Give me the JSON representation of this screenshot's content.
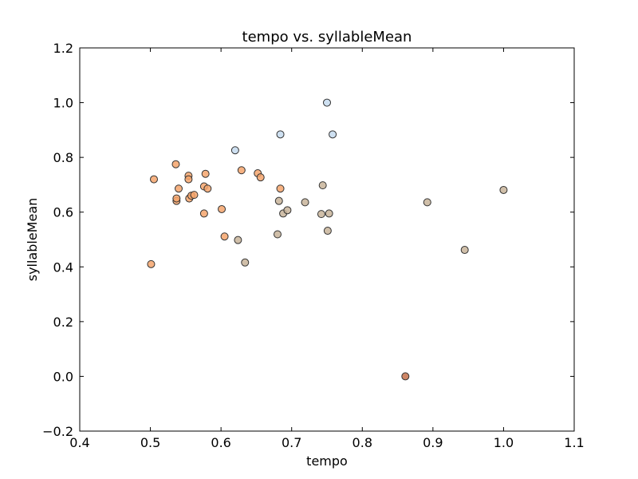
{
  "chart_data": {
    "type": "scatter",
    "title": "tempo vs. syllableMean",
    "xlabel": "tempo",
    "ylabel": "syllableMean",
    "xlim": [
      0.4,
      1.1
    ],
    "ylim": [
      -0.2,
      1.2
    ],
    "xticks": [
      0.4,
      0.5,
      0.6,
      0.7,
      0.8,
      0.9,
      1.0,
      1.1
    ],
    "xtick_labels": [
      "0.4",
      "0.5",
      "0.6",
      "0.7",
      "0.8",
      "0.9",
      "1.0",
      "1.1"
    ],
    "yticks": [
      -0.2,
      0.0,
      0.2,
      0.4,
      0.6,
      0.8,
      1.0,
      1.2
    ],
    "ytick_labels": [
      "−0.2",
      "0.0",
      "0.2",
      "0.4",
      "0.6",
      "0.8",
      "1.0",
      "1.2"
    ],
    "grid": false,
    "colors": {
      "blue": "#c6dbef",
      "orange": "#f4a46c",
      "tan": "#c8b49a",
      "brown": "#c4704a"
    },
    "points": [
      {
        "x": 0.62,
        "y": 0.826,
        "color": "blue"
      },
      {
        "x": 0.684,
        "y": 0.884,
        "color": "blue"
      },
      {
        "x": 0.75,
        "y": 1.0,
        "color": "blue"
      },
      {
        "x": 0.758,
        "y": 0.884,
        "color": "blue"
      },
      {
        "x": 0.501,
        "y": 0.41,
        "color": "orange"
      },
      {
        "x": 0.505,
        "y": 0.72,
        "color": "orange"
      },
      {
        "x": 0.536,
        "y": 0.775,
        "color": "orange"
      },
      {
        "x": 0.537,
        "y": 0.641,
        "color": "orange"
      },
      {
        "x": 0.537,
        "y": 0.65,
        "color": "orange"
      },
      {
        "x": 0.54,
        "y": 0.686,
        "color": "orange"
      },
      {
        "x": 0.554,
        "y": 0.733,
        "color": "orange"
      },
      {
        "x": 0.554,
        "y": 0.72,
        "color": "orange"
      },
      {
        "x": 0.555,
        "y": 0.65,
        "color": "orange"
      },
      {
        "x": 0.558,
        "y": 0.66,
        "color": "orange"
      },
      {
        "x": 0.562,
        "y": 0.663,
        "color": "orange"
      },
      {
        "x": 0.576,
        "y": 0.694,
        "color": "orange"
      },
      {
        "x": 0.576,
        "y": 0.595,
        "color": "orange"
      },
      {
        "x": 0.578,
        "y": 0.74,
        "color": "orange"
      },
      {
        "x": 0.581,
        "y": 0.686,
        "color": "orange"
      },
      {
        "x": 0.601,
        "y": 0.611,
        "color": "orange"
      },
      {
        "x": 0.605,
        "y": 0.511,
        "color": "orange"
      },
      {
        "x": 0.629,
        "y": 0.753,
        "color": "orange"
      },
      {
        "x": 0.652,
        "y": 0.742,
        "color": "orange"
      },
      {
        "x": 0.656,
        "y": 0.727,
        "color": "orange"
      },
      {
        "x": 0.684,
        "y": 0.686,
        "color": "orange"
      },
      {
        "x": 0.624,
        "y": 0.498,
        "color": "tan"
      },
      {
        "x": 0.634,
        "y": 0.416,
        "color": "tan"
      },
      {
        "x": 0.68,
        "y": 0.519,
        "color": "tan"
      },
      {
        "x": 0.682,
        "y": 0.641,
        "color": "tan"
      },
      {
        "x": 0.688,
        "y": 0.595,
        "color": "tan"
      },
      {
        "x": 0.694,
        "y": 0.607,
        "color": "tan"
      },
      {
        "x": 0.719,
        "y": 0.636,
        "color": "tan"
      },
      {
        "x": 0.742,
        "y": 0.593,
        "color": "tan"
      },
      {
        "x": 0.744,
        "y": 0.698,
        "color": "tan"
      },
      {
        "x": 0.751,
        "y": 0.532,
        "color": "tan"
      },
      {
        "x": 0.753,
        "y": 0.595,
        "color": "tan"
      },
      {
        "x": 0.892,
        "y": 0.636,
        "color": "tan"
      },
      {
        "x": 0.945,
        "y": 0.462,
        "color": "tan"
      },
      {
        "x": 1.0,
        "y": 0.681,
        "color": "tan"
      },
      {
        "x": 0.861,
        "y": 0.0,
        "color": "brown"
      }
    ]
  }
}
